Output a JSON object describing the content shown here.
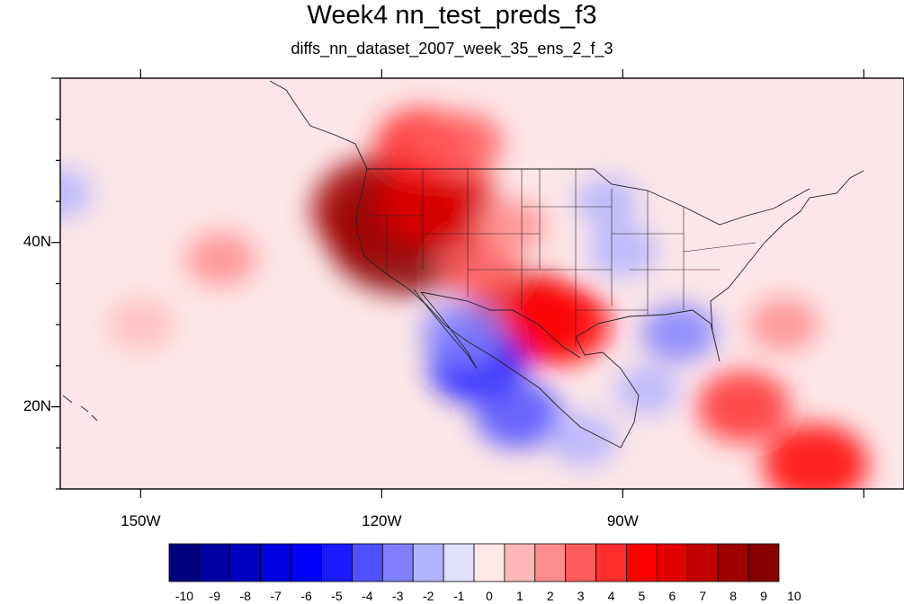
{
  "title": "Week4 nn_test_preds_f3",
  "subtitle": "diffs_nn_dataset_2007_week_35_ens_2_f_3",
  "map": {
    "projection": "cylindrical equidistant",
    "lon_range": [
      -160,
      -55
    ],
    "lat_range": [
      10,
      60
    ],
    "lat_labels": [
      {
        "value": 40,
        "label": "40N"
      },
      {
        "value": 20,
        "label": "20N"
      }
    ],
    "lon_labels": [
      {
        "value": -150,
        "label": "150W"
      },
      {
        "value": -120,
        "label": "120W"
      },
      {
        "value": -90,
        "label": "90W"
      }
    ],
    "features": [
      "coastlines",
      "country borders",
      "US state borders",
      "Canadian province borders"
    ]
  },
  "colorbar": {
    "ticks": [
      "-10",
      "-9",
      "-8",
      "-7",
      "-6",
      "-5",
      "-4",
      "-3",
      "-2",
      "-1",
      "0",
      "1",
      "2",
      "3",
      "4",
      "5",
      "6",
      "7",
      "8",
      "9",
      "10"
    ],
    "colors": [
      "#00007f",
      "#0000a1",
      "#0000c1",
      "#0000e0",
      "#0000ff",
      "#1a1aff",
      "#5050ff",
      "#8080ff",
      "#b3b3ff",
      "#e0e0fa",
      "#ffe8e8",
      "#ffb8b8",
      "#ff8c8c",
      "#ff5c5c",
      "#ff2e2e",
      "#ff0000",
      "#e00000",
      "#c00000",
      "#a00000",
      "#860000"
    ]
  },
  "anomalies": [
    {
      "lon": -117,
      "lat": 41,
      "value": 9.5
    },
    {
      "lon": -120,
      "lat": 44,
      "value": 8
    },
    {
      "lon": -113,
      "lat": 45,
      "value": 6
    },
    {
      "lon": -115,
      "lat": 52,
      "value": 4
    },
    {
      "lon": -110,
      "lat": 52,
      "value": 3
    },
    {
      "lon": -102,
      "lat": 31,
      "value": 6
    },
    {
      "lon": -98,
      "lat": 30,
      "value": 5
    },
    {
      "lon": -108,
      "lat": 37,
      "value": 3
    },
    {
      "lon": -104,
      "lat": 42,
      "value": 2
    },
    {
      "lon": -140,
      "lat": 38,
      "value": 2
    },
    {
      "lon": -150,
      "lat": 30,
      "value": 1.5
    },
    {
      "lon": -75,
      "lat": 20,
      "value": 4
    },
    {
      "lon": -66,
      "lat": 13,
      "value": 5
    },
    {
      "lon": -70,
      "lat": 30,
      "value": 2
    },
    {
      "lon": -108,
      "lat": 25,
      "value": -4.5
    },
    {
      "lon": -103,
      "lat": 19,
      "value": -3.5
    },
    {
      "lon": -110,
      "lat": 29,
      "value": -3
    },
    {
      "lon": -90,
      "lat": 39,
      "value": -2
    },
    {
      "lon": -83,
      "lat": 29,
      "value": -2.5
    },
    {
      "lon": -87,
      "lat": 22,
      "value": -1.5
    },
    {
      "lon": -92,
      "lat": 45,
      "value": -1.5
    },
    {
      "lon": -160,
      "lat": 46,
      "value": -1.5
    },
    {
      "lon": -95,
      "lat": 16,
      "value": -2
    }
  ]
}
